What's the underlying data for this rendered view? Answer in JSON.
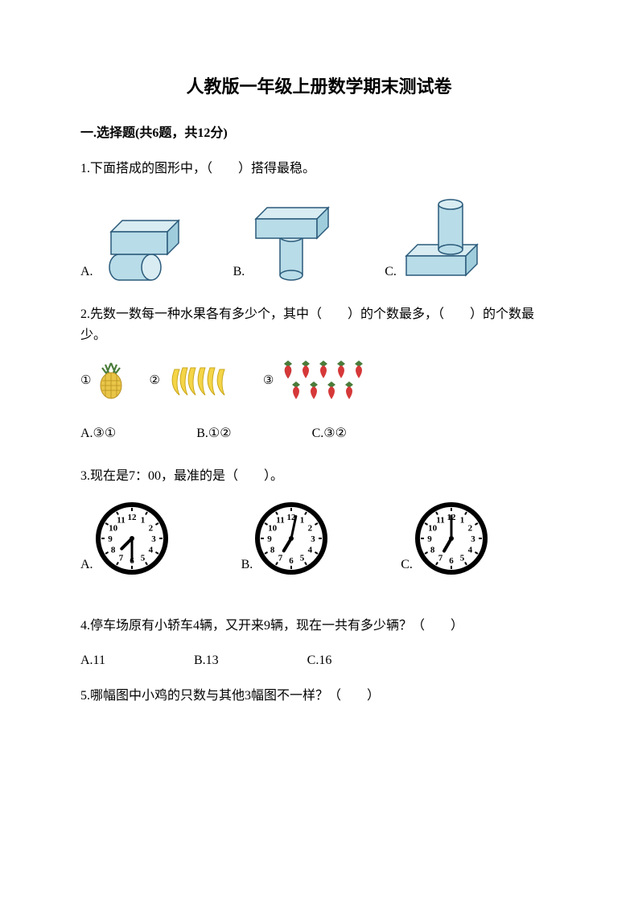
{
  "title": "人教版一年级上册数学期末测试卷",
  "section1": {
    "header": "一.选择题(共6题，共12分)"
  },
  "q1": {
    "text": "1.下面搭成的图形中，（　　）搭得最稳。",
    "optA": "A.",
    "optB": "B.",
    "optC": "C.",
    "shape_fill": "#b8dce8",
    "shape_stroke": "#2a5a7a"
  },
  "q2": {
    "text": "2.先数一数每一种水果各有多少个，其中（　　）的个数最多，（　　）的个数最少。",
    "num1": "①",
    "num2": "②",
    "num3": "③",
    "optA": "A.③①",
    "optB": "B.①②",
    "optC": "C.③②",
    "pineapple_body": "#e8c547",
    "pineapple_leaf": "#4a7c3a",
    "banana_color": "#f5d547",
    "strawberry_color": "#d63838",
    "strawberry_leaf": "#4a7c3a"
  },
  "q3": {
    "text": "3.现在是7：00，最准的是（　　）。",
    "optA": "A.",
    "optB": "B.",
    "optC": "C.",
    "clock_stroke": "#000000",
    "clock_fill": "#ffffff",
    "clockA": {
      "hour": 7,
      "minute": 30
    },
    "clockB": {
      "hour": 7,
      "minute": 2
    },
    "clockC": {
      "hour": 7,
      "minute": 0
    }
  },
  "q4": {
    "text": "4.停车场原有小轿车4辆，又开来9辆，现在一共有多少辆？（　　）",
    "optA": "A.11",
    "optB": "B.13",
    "optC": "C.16"
  },
  "q5": {
    "text": "5.哪幅图中小鸡的只数与其他3幅图不一样？（　　）"
  }
}
